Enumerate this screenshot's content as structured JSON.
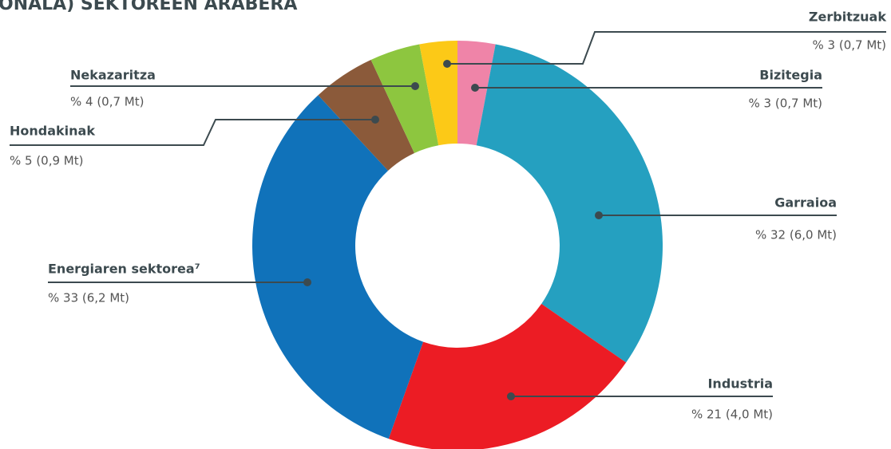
{
  "chart_data": {
    "type": "donut",
    "title": "ONALA) SEKTOREEN ARABERA",
    "categories": [
      "Bizitegia",
      "Garraioa",
      "Industria",
      "Energiaren sektorea⁷",
      "Hondakinak",
      "Nekazaritza",
      "Zerbitzuak"
    ],
    "values": [
      3,
      32,
      21,
      33,
      5,
      4,
      3
    ],
    "value_labels": [
      "% 3 (0,7 Mt)",
      "% 32 (6,0 Mt)",
      "% 21 (4,0 Mt)",
      "% 33 (6,2 Mt)",
      "% 5 (0,9 Mt)",
      "% 4 (0,7 Mt)",
      "% 3 (0,7 Mt)"
    ],
    "colors": [
      "#ef84a8",
      "#25a0c0",
      "#ec1c24",
      "#1072ba",
      "#8b5a3a",
      "#8dc63f",
      "#fcc917"
    ]
  }
}
